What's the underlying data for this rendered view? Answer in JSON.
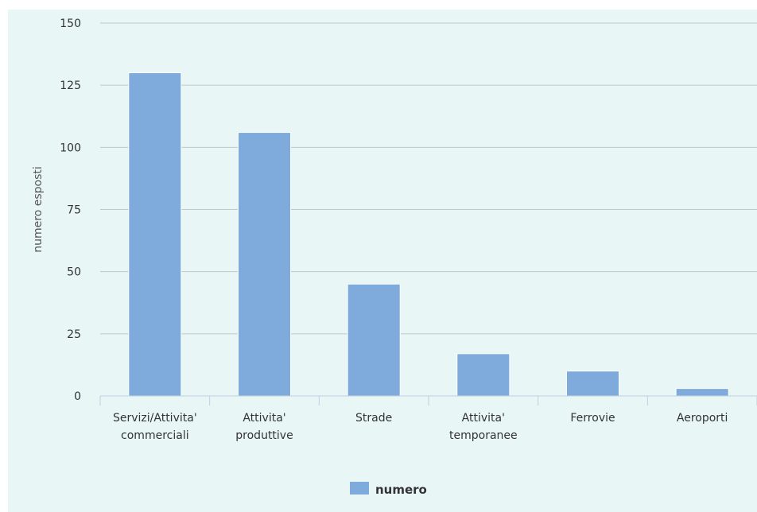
{
  "chart_data": {
    "type": "bar",
    "categories": [
      [
        "Servizi/Attivita'",
        "commerciali"
      ],
      [
        "Attivita'",
        "produttive"
      ],
      [
        "Strade"
      ],
      [
        "Attivita'",
        "temporanee"
      ],
      [
        "Ferrovie"
      ],
      [
        "Aeroporti"
      ]
    ],
    "series": [
      {
        "name": "numero",
        "values": [
          130,
          106,
          45,
          17,
          10,
          3
        ],
        "color": "#7eabdc"
      }
    ],
    "ylabel": "numero esposti",
    "ylim": [
      0,
      150
    ],
    "yticks": [
      0,
      25,
      50,
      75,
      100,
      125,
      150
    ],
    "grid": true,
    "legend_position": "bottom-center",
    "background_color": "#e8f6f6",
    "grid_color": "#c0c8c8",
    "axis_color": "#c0d0e0"
  }
}
